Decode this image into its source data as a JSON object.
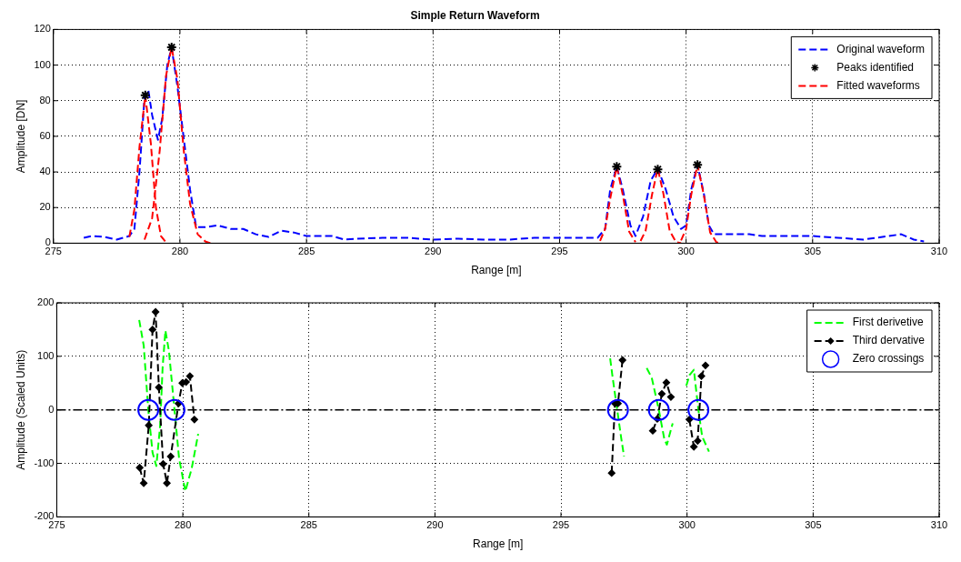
{
  "chart_data": [
    {
      "type": "line",
      "title": "Simple Return Waveform",
      "xlabel": "Range [m]",
      "ylabel": "Amplitude [DN]",
      "xlim": [
        275,
        310
      ],
      "xticks": [
        275,
        280,
        285,
        290,
        295,
        300,
        305,
        310
      ],
      "ylim": [
        0,
        120
      ],
      "yticks": [
        0,
        20,
        40,
        60,
        80,
        100,
        120
      ],
      "grid": true,
      "legend": "top right",
      "series": [
        {
          "name": "Original waveform",
          "type": "line",
          "color": "#0000ff",
          "line_style": "dashed",
          "marker": "none",
          "x": [
            276.2,
            276.5,
            277,
            277.5,
            278,
            278.2,
            278.4,
            278.6,
            278.75,
            278.9,
            279.13,
            279.3,
            279.5,
            279.67,
            279.9,
            280.14,
            280.4,
            280.64,
            281,
            281.5,
            282,
            282.5,
            283,
            283.5,
            284,
            284.5,
            285,
            286,
            286.5,
            287,
            288,
            289,
            290,
            291,
            292,
            293,
            294,
            295,
            296,
            296.5,
            296.8,
            297,
            297.26,
            297.5,
            297.8,
            298,
            298.3,
            298.6,
            298.88,
            299.2,
            299.5,
            299.8,
            300,
            300.2,
            300.45,
            300.7,
            300.9,
            301.1,
            302,
            302.5,
            303,
            304,
            305,
            306,
            307,
            308,
            308.5,
            309,
            309.4
          ],
          "values": [
            3,
            4,
            3.5,
            2,
            4,
            8,
            40,
            82,
            86,
            72,
            58,
            70,
            100,
            110,
            88,
            60,
            30,
            9,
            9,
            10,
            8,
            8,
            5,
            3.5,
            7,
            6,
            4,
            4,
            2,
            2.5,
            3,
            3,
            2,
            2.5,
            2,
            2,
            3,
            3,
            3,
            3,
            8,
            30,
            43,
            30,
            10,
            4,
            15,
            35,
            42,
            30,
            15,
            8,
            10,
            30,
            44,
            28,
            10,
            5,
            5,
            5,
            4,
            4,
            4,
            3,
            2,
            4,
            5,
            2,
            1
          ]
        },
        {
          "name": "Peaks identified",
          "type": "scatter",
          "color": "#000000",
          "marker": "cross",
          "x": [
            278.63,
            279.67,
            297.26,
            298.88,
            300.45
          ],
          "values": [
            83,
            110,
            43,
            41.5,
            44
          ]
        },
        {
          "name": "Fitted waveforms",
          "type": "line",
          "color": "#ff0000",
          "line_style": "dashed",
          "marker": "none",
          "x": [
            278,
            278.2,
            278.4,
            278.63,
            278.85,
            279.05,
            279.25,
            279.45
          ],
          "values": [
            3.5,
            19,
            54,
            83,
            56,
            20,
            4,
            0.4
          ]
        },
        {
          "type": "line",
          "color": "#ff0000",
          "line_style": "dashed",
          "marker": "none",
          "x": [
            278.6,
            278.9,
            279.2,
            279.45,
            279.67,
            279.9,
            280.15,
            280.4,
            280.7,
            281,
            281.2
          ],
          "values": [
            2,
            14,
            52,
            94,
            110,
            92,
            52,
            22,
            5,
            1,
            0
          ]
        },
        {
          "type": "line",
          "color": "#ff0000",
          "line_style": "dashed",
          "marker": "none",
          "x": [
            296.6,
            296.8,
            297,
            297.26,
            297.5,
            297.75,
            298
          ],
          "values": [
            1.3,
            8,
            25,
            43,
            27,
            6.5,
            0.6
          ]
        },
        {
          "type": "line",
          "color": "#ff0000",
          "line_style": "dashed",
          "marker": "none",
          "x": [
            298.2,
            298.4,
            298.65,
            298.88,
            299.1,
            299.35,
            299.6,
            299.8
          ],
          "values": [
            1.2,
            7,
            27,
            42,
            28,
            7,
            0.7,
            0
          ]
        },
        {
          "type": "line",
          "color": "#ff0000",
          "line_style": "dashed",
          "marker": "none",
          "x": [
            299.8,
            300,
            300.2,
            300.45,
            300.7,
            300.95,
            301.2,
            301.4
          ],
          "values": [
            1.5,
            8,
            27,
            44,
            27,
            6,
            0.5,
            0
          ]
        }
      ]
    },
    {
      "type": "line",
      "xlabel": "Range [m]",
      "ylabel": "Amplitude (Scaled Units)",
      "xlim": [
        275,
        310
      ],
      "xticks": [
        275,
        280,
        285,
        290,
        295,
        300,
        305,
        310
      ],
      "ylim": [
        -200,
        200
      ],
      "yticks": [
        -200,
        -100,
        0,
        100,
        200
      ],
      "grid": true,
      "legend": "top right",
      "ref_lines": [
        {
          "axis": "y",
          "value": 0,
          "color": "#000000",
          "line_style": "dashed"
        }
      ],
      "series": [
        {
          "name": "First derivetive",
          "type": "line",
          "color": "#00ff00",
          "line_style": "dashed",
          "marker": "none",
          "x": [
            278.27,
            278.45,
            278.63,
            278.8,
            278.95,
            279.1,
            279.2,
            279.31,
            279.45,
            279.67,
            279.85,
            280.1,
            280.35,
            280.61,
            290,
            296.95,
            297.05,
            297.23,
            297.38,
            297.5,
            298,
            298.4,
            298.6,
            298.88,
            299.1,
            299.2,
            299.43,
            299.7,
            299.97,
            300.1,
            300.27,
            300.45,
            300.6,
            300.87
          ],
          "values": [
            168,
            120,
            0,
            -80,
            -105,
            -30,
            80,
            148,
            110,
            0,
            -90,
            -152,
            -110,
            -45,
            null,
            96,
            60,
            0,
            -50,
            -87,
            null,
            78,
            60,
            0,
            -55,
            -65,
            -25,
            null,
            45,
            65,
            75,
            0,
            -50,
            -78
          ]
        },
        {
          "name": "Third dervative",
          "type": "line",
          "color": "#000000",
          "line_style": "dashed",
          "marker": "diamond",
          "x": [
            278.29,
            278.45,
            278.65,
            278.8,
            278.92,
            279.05,
            279.22,
            279.37,
            279.52,
            279.83,
            279.98,
            280.13,
            280.28,
            280.46,
            290,
            297.01,
            297.14,
            297.26,
            297.44,
            298,
            298.64,
            298.82,
            299,
            299.18,
            299.36,
            299.7,
            300.09,
            300.27,
            300.42,
            300.57,
            300.73
          ],
          "values": [
            -108,
            -137,
            -29,
            150,
            183,
            42,
            -101,
            -137,
            -87,
            12,
            50,
            52,
            63,
            -18,
            null,
            -118,
            12,
            12,
            93,
            null,
            -39,
            -17,
            30,
            51,
            24,
            null,
            -18,
            -69,
            -58,
            63,
            83
          ]
        },
        {
          "name": "Zero crossings",
          "type": "scatter",
          "color": "#0000ff",
          "marker": "circle",
          "x": [
            278.63,
            279.67,
            297.26,
            298.88,
            300.45
          ],
          "values": [
            0,
            0,
            0,
            0,
            0
          ]
        }
      ]
    }
  ]
}
